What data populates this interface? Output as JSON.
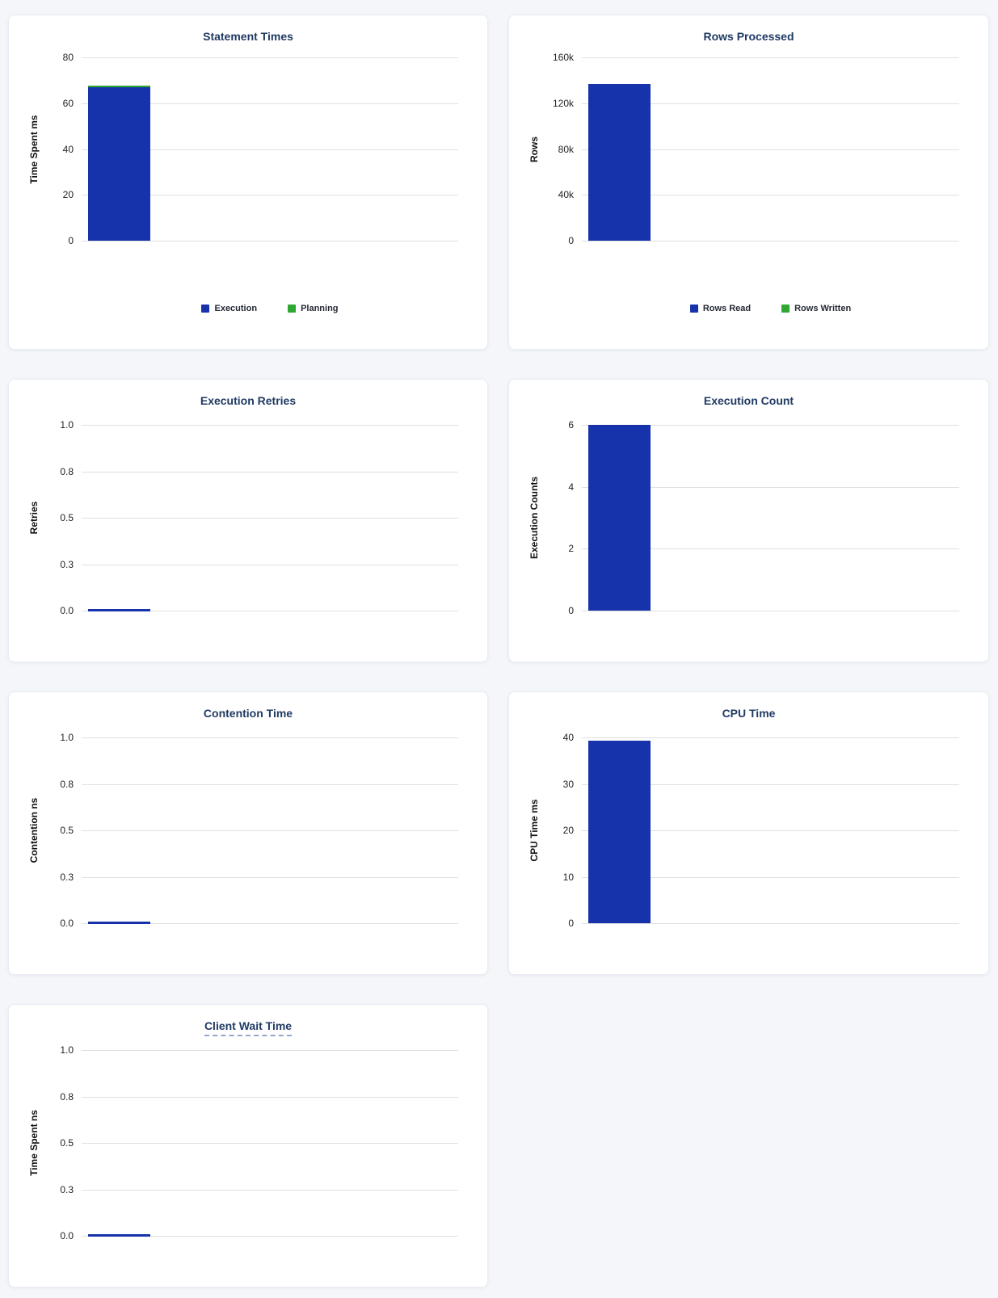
{
  "page": {
    "background_color": "#f4f6fa",
    "card_color": "#ffffff",
    "title_color": "#203a63",
    "gridline_color": "#e0e0e0",
    "bar_blue": "#1733ab",
    "bar_green": "#2fa733"
  },
  "chart_data": [
    {
      "type": "bar",
      "title": "Statement Times",
      "ylabel": "Time Spent ms",
      "ylim": [
        0,
        80
      ],
      "yticks": [
        "80",
        "60",
        "40",
        "20",
        "0"
      ],
      "grid": true,
      "stacked": true,
      "series": [
        {
          "name": "Execution",
          "value": 67,
          "color": "#1733ab"
        },
        {
          "name": "Planning",
          "value": 0.7,
          "color": "#2fa733"
        }
      ],
      "legend": [
        {
          "label": "Execution",
          "color": "#1733ab"
        },
        {
          "label": "Planning",
          "color": "#2fa733"
        }
      ],
      "legend_position": "bottom"
    },
    {
      "type": "bar",
      "title": "Rows Processed",
      "ylabel": "Rows",
      "ylim": [
        0,
        160000
      ],
      "yticks": [
        "160k",
        "120k",
        "80k",
        "40k",
        "0"
      ],
      "grid": true,
      "stacked": true,
      "series": [
        {
          "name": "Rows Read",
          "value": 137000,
          "color": "#1733ab"
        },
        {
          "name": "Rows Written",
          "value": 0,
          "color": "#2fa733"
        }
      ],
      "legend": [
        {
          "label": "Rows Read",
          "color": "#1733ab"
        },
        {
          "label": "Rows Written",
          "color": "#2fa733"
        }
      ],
      "legend_position": "bottom"
    },
    {
      "type": "bar",
      "title": "Execution Retries",
      "ylabel": "Retries",
      "ylim": [
        0,
        1.0
      ],
      "yticks": [
        "1.0",
        "0.8",
        "0.5",
        "0.3",
        "0.0"
      ],
      "grid": true,
      "stacked": false,
      "series": [
        {
          "name": "Retries",
          "value": 0,
          "color": "#1733ab"
        }
      ]
    },
    {
      "type": "bar",
      "title": "Execution Count",
      "ylabel": "Execution Counts",
      "ylim": [
        0,
        6
      ],
      "yticks": [
        "6",
        "4",
        "2",
        "0"
      ],
      "grid": true,
      "stacked": false,
      "series": [
        {
          "name": "Execution Counts",
          "value": 6,
          "color": "#1733ab"
        }
      ]
    },
    {
      "type": "bar",
      "title": "Contention Time",
      "ylabel": "Contention ns",
      "ylim": [
        0,
        1.0
      ],
      "yticks": [
        "1.0",
        "0.8",
        "0.5",
        "0.3",
        "0.0"
      ],
      "grid": true,
      "stacked": false,
      "series": [
        {
          "name": "Contention",
          "value": 0,
          "color": "#1733ab"
        }
      ]
    },
    {
      "type": "bar",
      "title": "CPU Time",
      "ylabel": "CPU Time ms",
      "ylim": [
        0,
        40
      ],
      "yticks": [
        "40",
        "30",
        "20",
        "10",
        "0"
      ],
      "grid": true,
      "stacked": false,
      "series": [
        {
          "name": "CPU Time",
          "value": 39.3,
          "color": "#1733ab"
        }
      ]
    },
    {
      "type": "bar",
      "title": "Client Wait Time",
      "ylabel": "Time Spent ns",
      "ylim": [
        0,
        1.0
      ],
      "yticks": [
        "1.0",
        "0.8",
        "0.5",
        "0.3",
        "0.0"
      ],
      "grid": true,
      "stacked": false,
      "title_has_tooltip_underline": true,
      "series": [
        {
          "name": "Time Spent",
          "value": 0,
          "color": "#1733ab"
        }
      ]
    }
  ]
}
